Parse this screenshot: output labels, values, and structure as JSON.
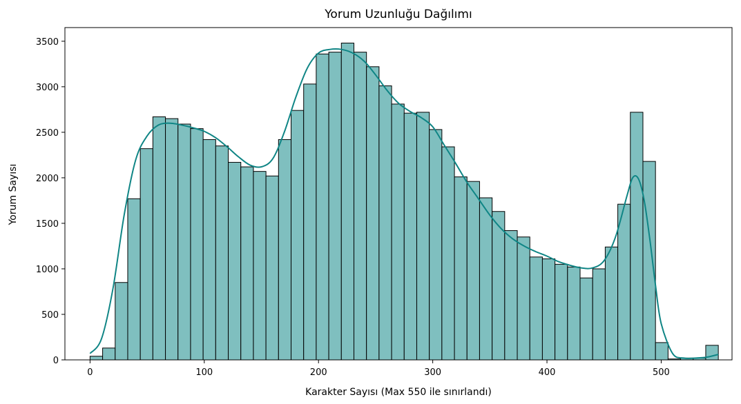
{
  "chart_data": {
    "type": "bar",
    "title": "Yorum Uzunluğu Dağılımı",
    "xlabel": "Karakter Sayısı (Max 550 ile sınırlandı)",
    "ylabel": "Yorum Sayısı",
    "xlim": [
      -22,
      562
    ],
    "ylim": [
      0,
      3650
    ],
    "xticks": [
      0,
      100,
      200,
      300,
      400,
      500
    ],
    "yticks": [
      0,
      500,
      1000,
      1500,
      2000,
      2500,
      3000,
      3500
    ],
    "grid": false,
    "legend": "none",
    "bin_width": 11,
    "bins": {
      "start": [
        0,
        11,
        22,
        33,
        44,
        55,
        66,
        77,
        88,
        99,
        110,
        121,
        132,
        143,
        154,
        165,
        176,
        187,
        198,
        209,
        220,
        231,
        242,
        253,
        264,
        275,
        286,
        297,
        308,
        319,
        330,
        341,
        352,
        363,
        374,
        385,
        396,
        407,
        418,
        429,
        440,
        451,
        462,
        473,
        484,
        495,
        506,
        517,
        528,
        539
      ],
      "count": [
        40,
        130,
        850,
        1770,
        2320,
        2670,
        2650,
        2590,
        2540,
        2420,
        2350,
        2170,
        2120,
        2070,
        2020,
        2420,
        2740,
        3030,
        3360,
        3380,
        3480,
        3380,
        3220,
        3010,
        2810,
        2710,
        2720,
        2530,
        2340,
        2010,
        1960,
        1780,
        1630,
        1420,
        1350,
        1130,
        1110,
        1050,
        1020,
        900,
        1000,
        1240,
        1710,
        2720,
        2180,
        190,
        10,
        20,
        20,
        160
      ]
    },
    "kde": {
      "x": [
        0,
        10,
        20,
        30,
        40,
        50,
        60,
        70,
        80,
        90,
        100,
        110,
        120,
        130,
        140,
        150,
        160,
        170,
        180,
        190,
        200,
        210,
        220,
        230,
        240,
        250,
        260,
        270,
        280,
        290,
        300,
        310,
        320,
        330,
        340,
        350,
        360,
        370,
        380,
        390,
        400,
        410,
        420,
        430,
        440,
        450,
        460,
        470,
        475,
        480,
        485,
        490,
        495,
        500,
        510,
        520,
        530,
        540,
        550
      ],
      "y": [
        70,
        230,
        780,
        1600,
        2200,
        2460,
        2580,
        2600,
        2580,
        2550,
        2510,
        2440,
        2340,
        2230,
        2140,
        2120,
        2210,
        2500,
        2880,
        3200,
        3370,
        3410,
        3410,
        3370,
        3280,
        3130,
        2960,
        2820,
        2730,
        2660,
        2560,
        2360,
        2160,
        1950,
        1770,
        1590,
        1440,
        1330,
        1250,
        1190,
        1140,
        1080,
        1040,
        1010,
        1010,
        1090,
        1350,
        1800,
        2000,
        1990,
        1760,
        1330,
        820,
        400,
        70,
        20,
        20,
        30,
        60
      ]
    },
    "colors": {
      "bar_fill": "#7fbfbf",
      "bar_edge": "#000000",
      "kde_line": "#0f8585"
    }
  }
}
